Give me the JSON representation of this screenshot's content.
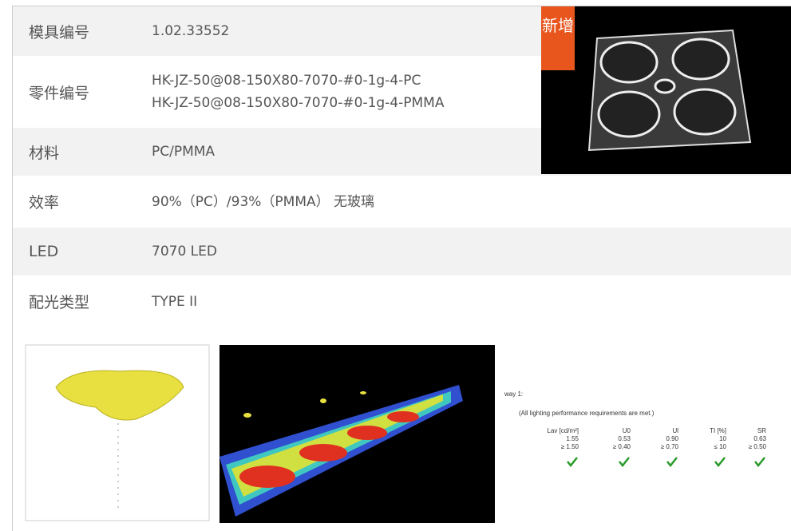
{
  "table": {
    "rows": [
      {
        "label": "模具编号",
        "value": [
          "1.02.33552"
        ]
      },
      {
        "label": "零件编号",
        "value": [
          "HK-JZ-50@08-150X80-7070-#0-1g-4-PC",
          "HK-JZ-50@08-150X80-7070-#0-1g-4-PMMA"
        ]
      },
      {
        "label": "材料",
        "value": [
          "PC/PMMA"
        ]
      },
      {
        "label": "效率",
        "value": [
          "90%（PC）/93%（PMMA） 无玻璃"
        ]
      },
      {
        "label": "LED",
        "value": [
          "7070 LED"
        ]
      },
      {
        "label": "配光类型",
        "value": [
          "TYPE II"
        ]
      }
    ]
  },
  "badge": "新增",
  "result": {
    "title": "way 1:",
    "note": "(All lighting performance requirements are met.)",
    "headers": [
      "Lav [cd/m²]",
      "U0",
      "Ul",
      "TI [%]",
      "SR"
    ],
    "measured": [
      "1.55",
      "0.53",
      "0.90",
      "10",
      "0.63"
    ],
    "required": [
      "≥ 1.50",
      "≥ 0.40",
      "≥ 0.70",
      "≤ 10",
      "≥ 0.50"
    ]
  }
}
